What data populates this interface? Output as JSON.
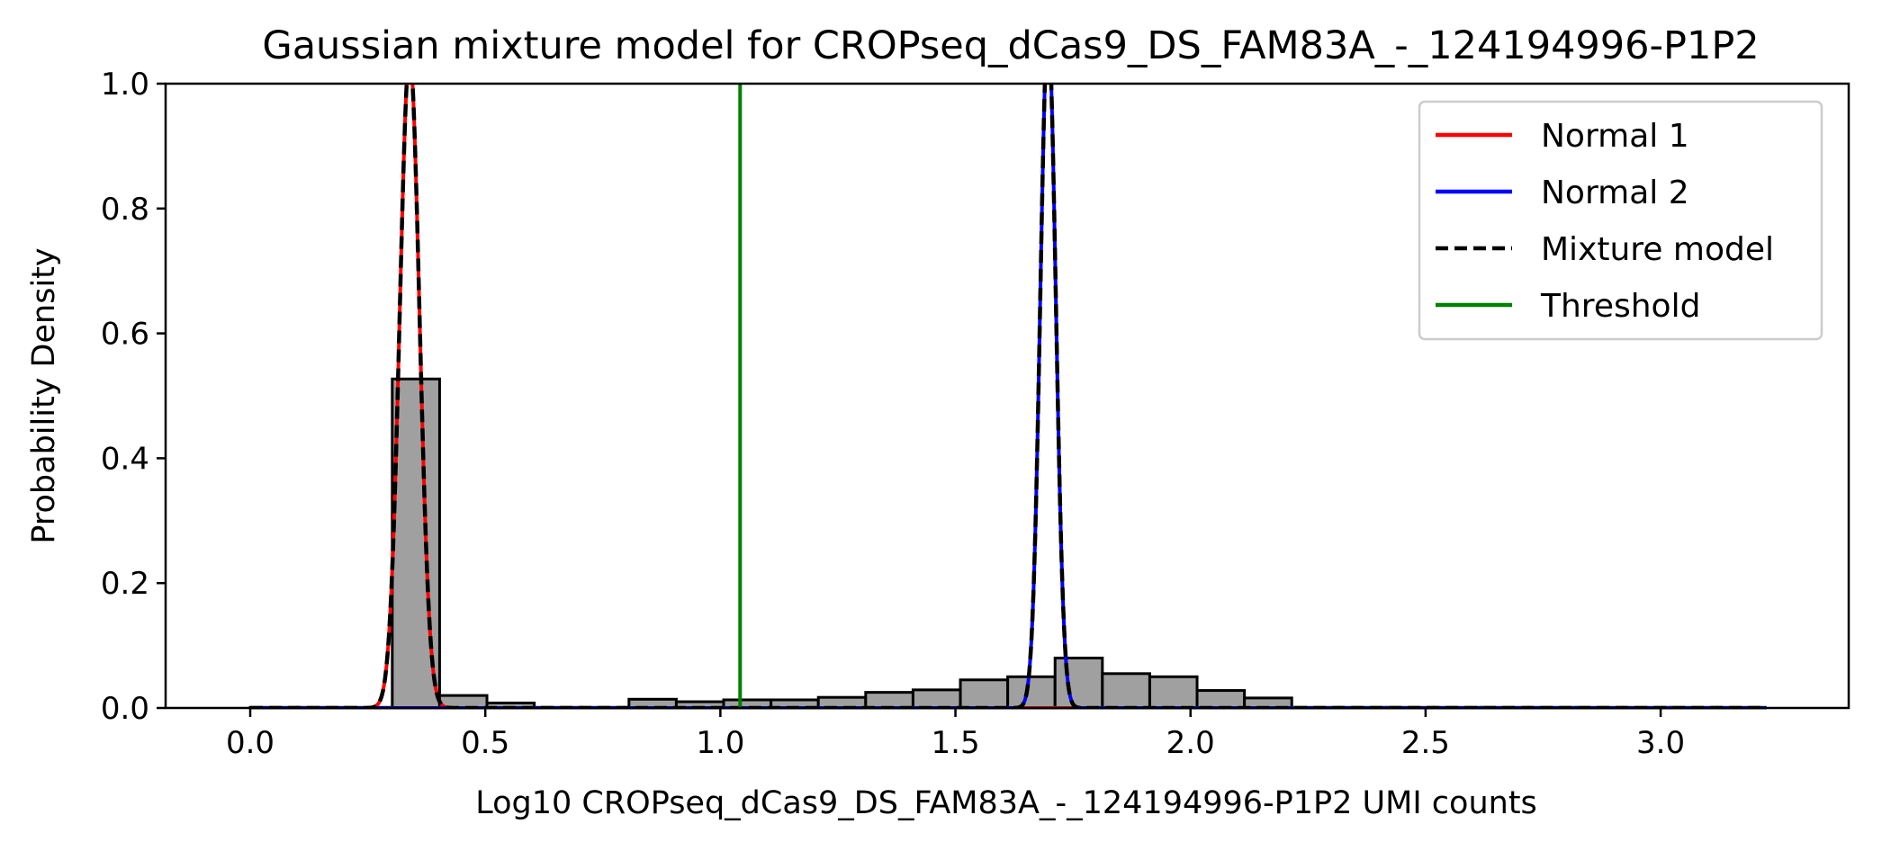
{
  "chart_data": {
    "type": "histogram",
    "title": "Gaussian mixture model for CROPseq_dCas9_DS_FAM83A_-_124194996-P1P2",
    "xlabel": "Log10 CROPseq_dCas9_DS_FAM83A_-_124194996-P1P2 UMI counts",
    "ylabel": "Probability Density",
    "xlim": [
      -0.18,
      3.4
    ],
    "ylim": [
      0,
      1.0
    ],
    "xticks": [
      0.0,
      0.5,
      1.0,
      1.5,
      2.0,
      2.5,
      3.0
    ],
    "xtick_labels": [
      "0.0",
      "0.5",
      "1.0",
      "1.5",
      "2.0",
      "2.5",
      "3.0"
    ],
    "yticks": [
      0.0,
      0.2,
      0.4,
      0.6,
      0.8,
      1.0
    ],
    "ytick_labels": [
      "0.0",
      "0.2",
      "0.4",
      "0.6",
      "0.8",
      "1.0"
    ],
    "legend_position": "top-right",
    "histogram": {
      "bin_edges": [
        0.0,
        0.1007,
        0.2014,
        0.3021,
        0.4028,
        0.5035,
        0.6042,
        0.7049,
        0.8056,
        0.9063,
        1.007,
        1.1077,
        1.2084,
        1.3091,
        1.4098,
        1.5105,
        1.6112,
        1.7119,
        1.8126,
        1.9133,
        2.014,
        2.1147,
        2.2154,
        2.3161,
        2.4168,
        2.5175,
        2.6182,
        2.7189,
        2.8196,
        2.9203,
        3.021,
        3.1217,
        3.2224
      ],
      "values": [
        0.001,
        0.001,
        0.001,
        0.527,
        0.02,
        0.008,
        0.001,
        0.001,
        0.014,
        0.01,
        0.013,
        0.013,
        0.017,
        0.025,
        0.029,
        0.045,
        0.05,
        0.08,
        0.055,
        0.05,
        0.028,
        0.016,
        0.001,
        0.001,
        0.001,
        0.001,
        0.001,
        0.001,
        0.001,
        0.001,
        0.001,
        0.001
      ],
      "fill_color": "#a0a0a0",
      "edge_color": "#000000"
    },
    "series": [
      {
        "name": "Normal 1",
        "color": "#ff0000",
        "style": "solid",
        "mean": 0.339,
        "std": 0.021,
        "weight": 0.055
      },
      {
        "name": "Normal 2",
        "color": "#0000ff",
        "style": "solid",
        "mean": 1.697,
        "std": 0.0165,
        "weight": 0.045
      },
      {
        "name": "Mixture model",
        "color": "#000000",
        "style": "dashed"
      },
      {
        "name": "Threshold",
        "color": "#008000",
        "style": "solid",
        "x": 1.042
      }
    ]
  }
}
